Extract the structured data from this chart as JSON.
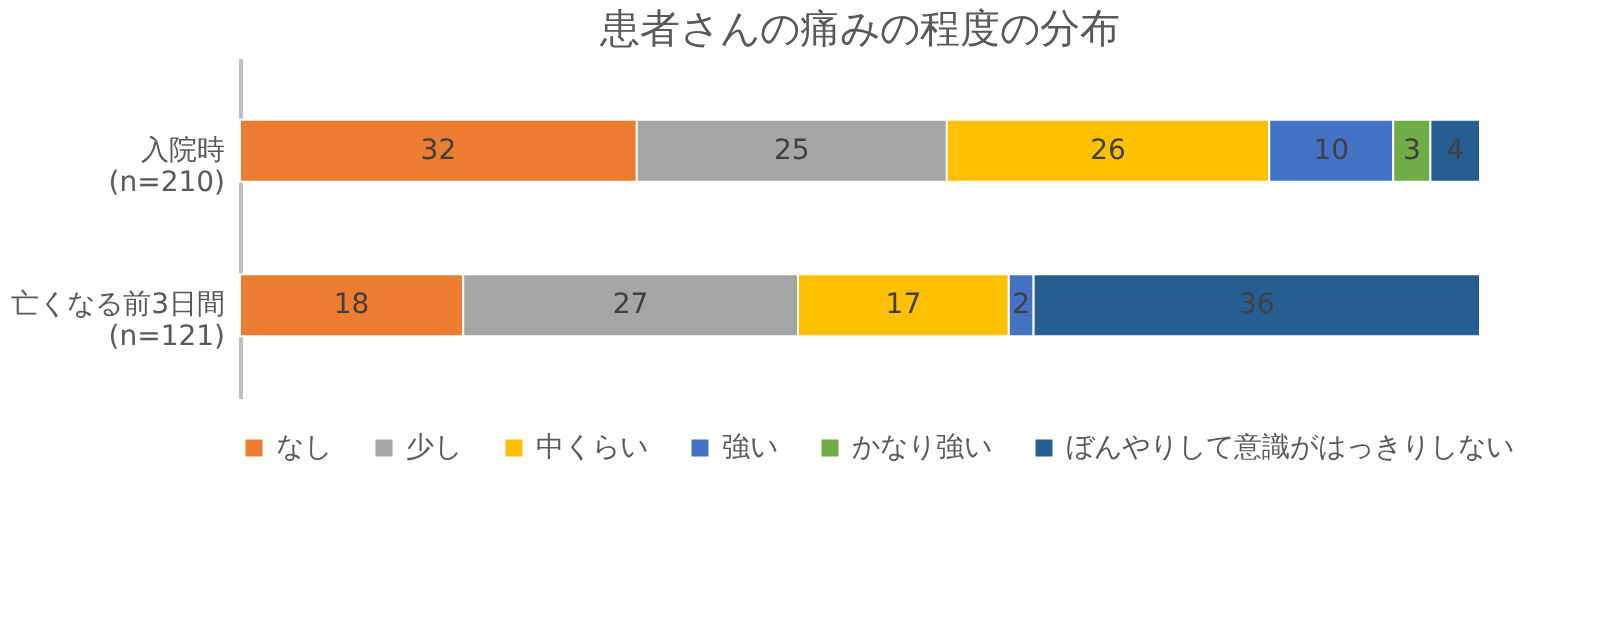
{
  "chart_data": {
    "type": "bar",
    "orientation": "horizontal",
    "stacked": true,
    "title": "患者さんの痛みの程度の分布",
    "categories": [
      "入院時\n(n=210)",
      "亡くなる前3日間\n(n=121)"
    ],
    "series": [
      {
        "name": "なし",
        "color": "#ed7d31",
        "values": [
          32,
          18
        ]
      },
      {
        "name": "少し",
        "color": "#a5a5a5",
        "values": [
          25,
          27
        ]
      },
      {
        "name": "中くらい",
        "color": "#ffc000",
        "values": [
          26,
          17
        ]
      },
      {
        "name": "強い",
        "color": "#4472c4",
        "values": [
          10,
          2
        ]
      },
      {
        "name": "かなり強い",
        "color": "#70ad47",
        "values": [
          3,
          null
        ]
      },
      {
        "name": "ぼんやりして意識がはっきりしない",
        "color": "#255e91",
        "values": [
          4,
          36
        ]
      }
    ],
    "data_labels": true,
    "legend": "bottom",
    "tick_labels": "y"
  }
}
